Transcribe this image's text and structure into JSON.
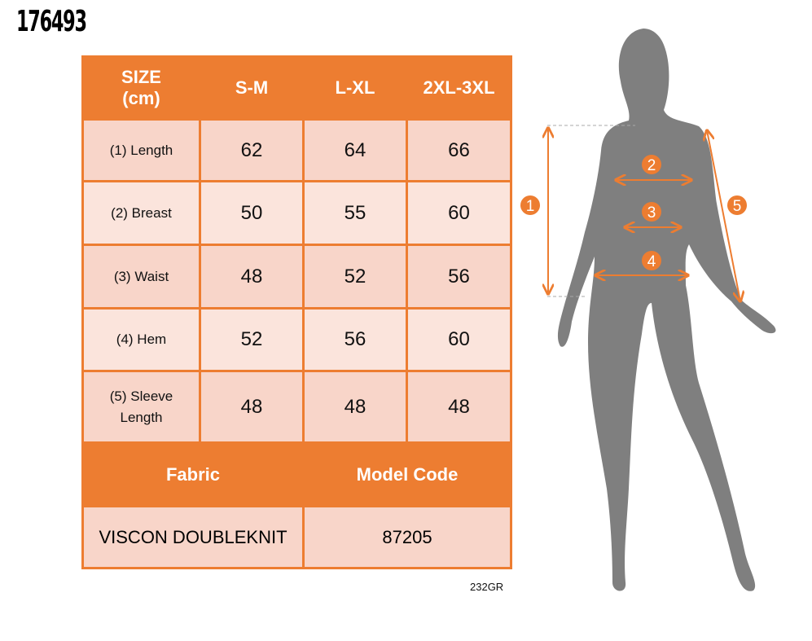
{
  "product_code": "176493",
  "table": {
    "header": [
      "SIZE (cm)",
      "S-M",
      "L-XL",
      "2XL-3XL"
    ],
    "header_size_line1": "SIZE",
    "header_size_line2": "(cm)",
    "rows": [
      {
        "label": "(1) Length",
        "values": [
          "62",
          "64",
          "66"
        ]
      },
      {
        "label": "(2) Breast",
        "values": [
          "50",
          "55",
          "60"
        ]
      },
      {
        "label": "(3) Waist",
        "values": [
          "48",
          "52",
          "56"
        ]
      },
      {
        "label": "(4) Hem",
        "values": [
          "52",
          "56",
          "60"
        ]
      },
      {
        "label": "(5) Sleeve Length",
        "values": [
          "48",
          "48",
          "48"
        ]
      }
    ],
    "fabric_label": "Fabric",
    "model_code_label": "Model Code",
    "fabric_value": "VISCON DOUBLEKNIT",
    "model_code_value": "87205"
  },
  "reference": "232GR",
  "figure": {
    "markers": [
      "1",
      "2",
      "3",
      "4",
      "5"
    ],
    "accent_color": "#ED7D31",
    "silhouette_color": "#7F7F7F"
  }
}
